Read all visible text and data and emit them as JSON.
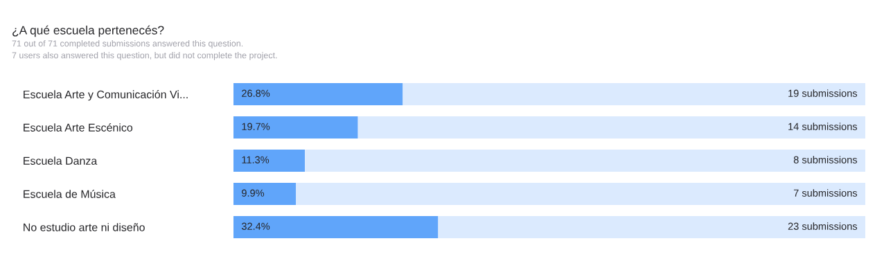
{
  "chart_data": {
    "type": "bar",
    "orientation": "horizontal",
    "stacked": true,
    "title": "¿A qué escuela pertenecés?",
    "subtitle": "71 out of 71 completed submissions answered this question.\n7 users also answered this question, but did not complete the project.",
    "categories": [
      "Escuela Arte y Comunicación Vi...",
      "Escuela Arte Escénico",
      "Escuela Danza",
      "Escuela de Música",
      "No estudio arte ni diseño"
    ],
    "series": [
      {
        "color": "#60a5fa",
        "values": [
          26.8,
          19.7,
          11.3,
          9.9,
          32.4
        ],
        "value_labels": [
          "26.8%",
          "19.7%",
          "11.3%",
          "9.9%",
          "32.4%"
        ]
      },
      {
        "color": "#dbeafe",
        "values": [
          73.2,
          80.3,
          88.7,
          90.1,
          67.6
        ]
      }
    ],
    "annotations": [
      "19 submissions",
      "14 submissions",
      "8 submissions",
      "7 submissions",
      "23 submissions"
    ],
    "xlim": [
      0,
      100
    ],
    "tick_labels": "y",
    "grid": false,
    "legend": false
  }
}
